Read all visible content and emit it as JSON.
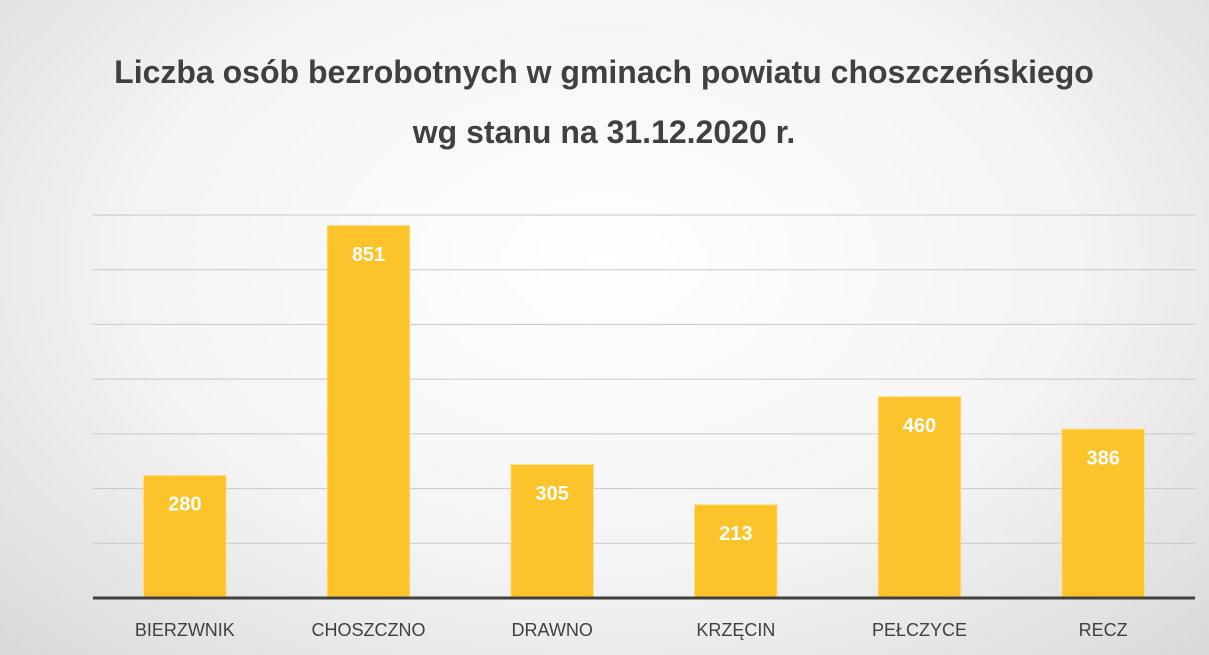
{
  "chart_data": {
    "type": "bar",
    "title": "Liczba osób bezrobotnych w gminach powiatu choszczeńskiego wg stanu na 31.12.2020 r.",
    "categories": [
      "BIERZWNIK",
      "CHOSZCZNO",
      "DRAWNO",
      "KRZĘCIN",
      "PEŁCZYCE",
      "RECZ"
    ],
    "values": [
      280,
      851,
      305,
      213,
      460,
      386
    ],
    "color": "#fcc42a",
    "ylim": [
      0,
      875
    ],
    "yticks": [
      0,
      125,
      250,
      375,
      500,
      625,
      750,
      875
    ],
    "grid": true
  }
}
